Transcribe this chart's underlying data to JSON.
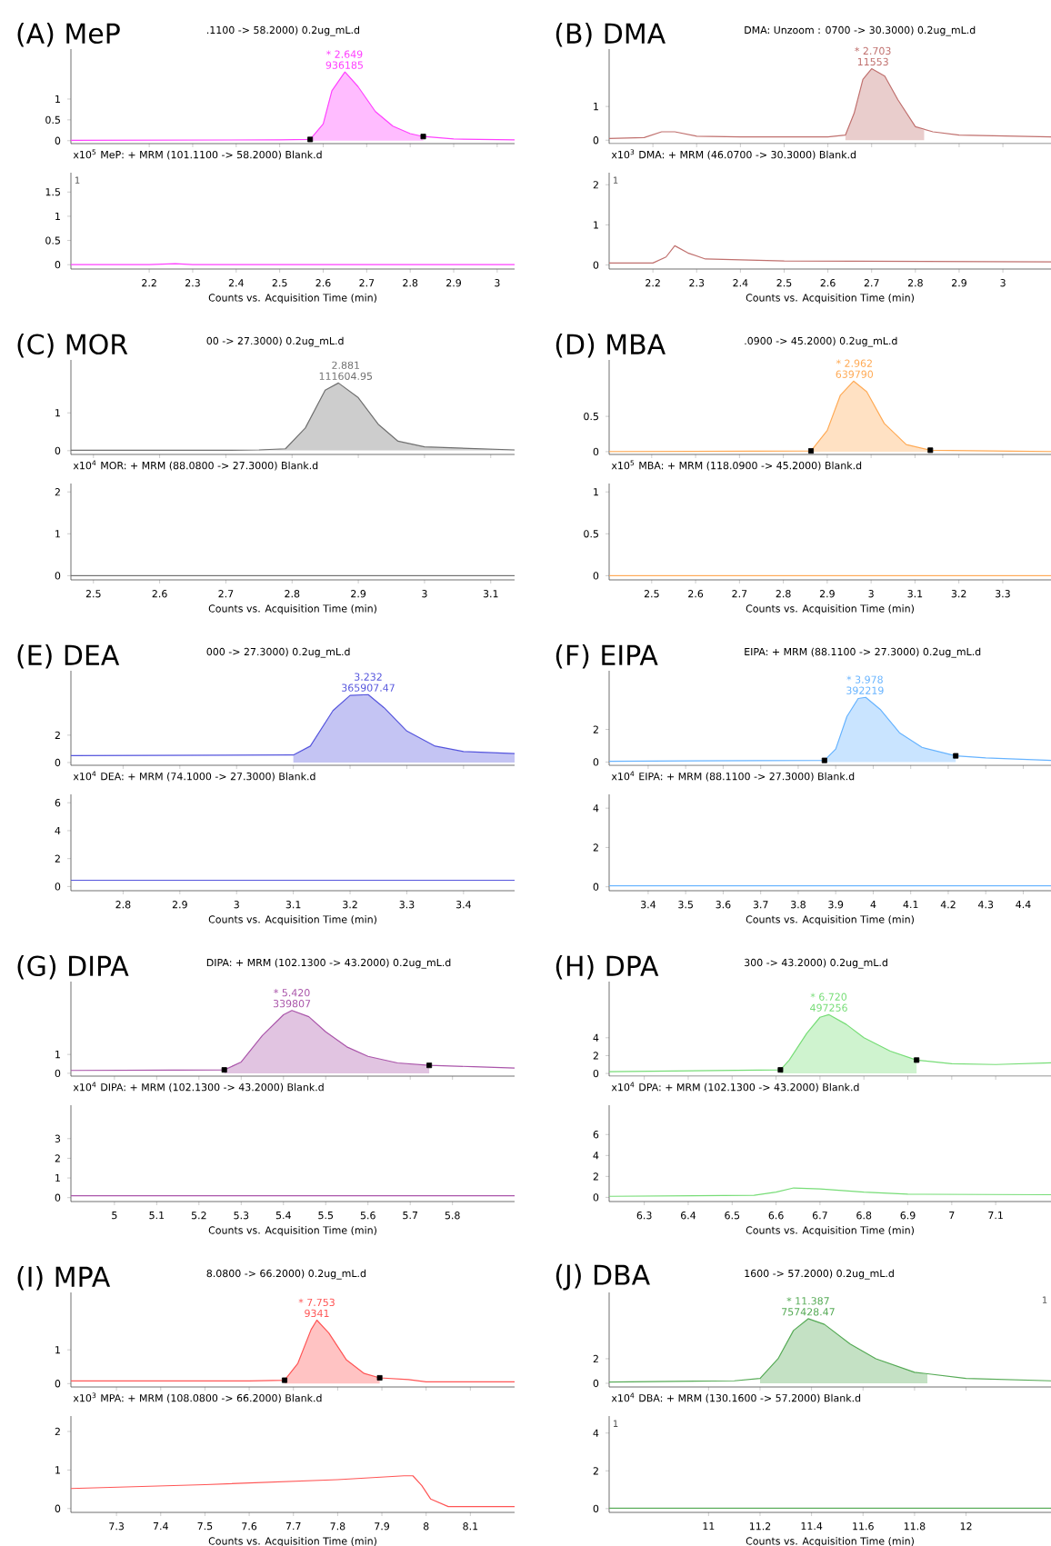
{
  "chart_data": [
    {
      "type": "area",
      "title": "(A) MeP",
      "subtitle": ".1100 -> 58.2000) 0.2ug_mL.d",
      "xlim": [
        2.02,
        3.04
      ],
      "ylim": [
        -0.07,
        2.2
      ],
      "xticks": [
        2.2,
        2.3,
        2.4,
        2.5,
        2.6,
        2.7,
        2.8,
        2.9,
        3
      ],
      "yticks": [
        0,
        0.5,
        1
      ],
      "tick_labels": "y",
      "annotations": [
        {
          "text": "* 2.649",
          "x": 2.649,
          "y": 1.65
        },
        {
          "text": "936185",
          "x": 2.649,
          "y": 1.65
        }
      ],
      "series": [
        {
          "type": "area",
          "color": "#ffbcff",
          "x": [
            2.57,
            2.6,
            2.62,
            2.65,
            2.68,
            2.72,
            2.76,
            2.8,
            2.83
          ],
          "values": [
            0.03,
            0.4,
            1.2,
            1.65,
            1.3,
            0.7,
            0.35,
            0.17,
            0.1
          ]
        },
        {
          "type": "line",
          "color": "#ff40ff",
          "x": [
            2.02,
            2.5,
            2.57,
            2.6,
            2.62,
            2.65,
            2.68,
            2.72,
            2.76,
            2.8,
            2.83,
            2.9,
            3.04
          ],
          "values": [
            0.01,
            0.02,
            0.03,
            0.4,
            1.2,
            1.65,
            1.3,
            0.7,
            0.35,
            0.17,
            0.1,
            0.04,
            0.02
          ]
        },
        {
          "type": "scatter",
          "marker": "square",
          "color": "#000000",
          "x": [
            2.57,
            2.83
          ],
          "values": [
            0.03,
            0.1
          ]
        }
      ]
    },
    {
      "type": "line",
      "title": "x10$^{5}$ MeP: + MRM (101.1100 -> 58.2000) Blank.d",
      "xlabel": "Counts vs. Acquisition Time (min)",
      "xlim": [
        2.02,
        3.04
      ],
      "ylim": [
        -0.09,
        1.9
      ],
      "xticks": [
        2.2,
        2.3,
        2.4,
        2.5,
        2.6,
        2.7,
        2.8,
        2.9,
        3
      ],
      "yticks": [
        0,
        0.5,
        1,
        1.5
      ],
      "annotations": [
        "1"
      ],
      "series": [
        {
          "color": "#ff40ff",
          "x": [
            2.02,
            2.2,
            2.26,
            2.3,
            3.04
          ],
          "values": [
            0,
            0,
            0.02,
            0,
            0
          ]
        }
      ]
    },
    {
      "type": "area",
      "title": "(B) DMA",
      "subtitle": "DMA: Unzoom : 0700 -> 30.3000) 0.2ug_mL.d",
      "xlim": [
        2.1,
        3.11
      ],
      "ylim": [
        -0.1,
        2.7
      ],
      "xticks": [
        2.2,
        2.3,
        2.4,
        2.5,
        2.6,
        2.7,
        2.8,
        2.9,
        3
      ],
      "yticks": [
        0,
        1
      ],
      "tick_labels": "y",
      "annotations": [
        {
          "text": "* 2.703",
          "x": 2.703,
          "y": 2.12
        },
        {
          "text": "11553",
          "x": 2.703,
          "y": 2.12
        }
      ],
      "series": [
        {
          "type": "area",
          "color": "#e9cdcc",
          "x": [
            2.64,
            2.66,
            2.68,
            2.7,
            2.73,
            2.76,
            2.8,
            2.82
          ],
          "values": [
            0.15,
            0.8,
            1.8,
            2.12,
            1.9,
            1.2,
            0.4,
            0.3
          ]
        },
        {
          "type": "line",
          "color": "#c0706e",
          "x": [
            2.1,
            2.18,
            2.22,
            2.25,
            2.3,
            2.4,
            2.6,
            2.64,
            2.66,
            2.68,
            2.7,
            2.73,
            2.76,
            2.8,
            2.84,
            2.9,
            3.11
          ],
          "values": [
            0.05,
            0.08,
            0.25,
            0.25,
            0.12,
            0.1,
            0.1,
            0.15,
            0.8,
            1.8,
            2.12,
            1.9,
            1.2,
            0.4,
            0.25,
            0.15,
            0.1
          ]
        }
      ]
    },
    {
      "type": "line",
      "title": "x10$^{3}$ DMA: + MRM (46.0700 -> 30.3000) Blank.d",
      "xlabel": "Counts vs. Acquisition Time (min)",
      "xlim": [
        2.1,
        3.11
      ],
      "ylim": [
        -0.1,
        2.3
      ],
      "xticks": [
        2.2,
        2.3,
        2.4,
        2.5,
        2.6,
        2.7,
        2.8,
        2.9,
        3
      ],
      "yticks": [
        0,
        1,
        2
      ],
      "annotations": [
        "1"
      ],
      "series": [
        {
          "color": "#c0706e",
          "x": [
            2.1,
            2.2,
            2.23,
            2.25,
            2.28,
            2.32,
            2.5,
            3.11
          ],
          "values": [
            0.05,
            0.05,
            0.2,
            0.48,
            0.3,
            0.15,
            0.1,
            0.08
          ]
        }
      ]
    },
    {
      "type": "area",
      "title": "(C) MOR",
      "subtitle": "00 -> 27.3000) 0.2ug_mL.d",
      "xlim": [
        2.466,
        3.136
      ],
      "ylim": [
        -0.1,
        2.4
      ],
      "xticks": [
        2.5,
        2.6,
        2.7,
        2.8,
        2.9,
        3,
        3.1
      ],
      "yticks": [
        0,
        1
      ],
      "tick_labels": "y",
      "annotations": [
        {
          "text": "2.881",
          "x": 2.881,
          "y": 1.79
        },
        {
          "text": "111604.95",
          "x": 2.881,
          "y": 1.79
        }
      ],
      "series": [
        {
          "type": "area",
          "color": "#cdcdcd",
          "x": [
            2.75,
            2.79,
            2.82,
            2.85,
            2.87,
            2.9,
            2.93,
            2.96,
            3.0,
            3.136
          ],
          "values": [
            0.02,
            0.05,
            0.6,
            1.6,
            1.79,
            1.4,
            0.7,
            0.25,
            0.1,
            0.02
          ]
        },
        {
          "type": "line",
          "color": "#707070",
          "x": [
            2.466,
            2.7,
            2.75,
            2.79,
            2.82,
            2.85,
            2.87,
            2.9,
            2.93,
            2.96,
            3.0,
            3.136
          ],
          "values": [
            0.01,
            0.01,
            0.02,
            0.05,
            0.6,
            1.6,
            1.79,
            1.4,
            0.7,
            0.25,
            0.1,
            0.02
          ]
        }
      ]
    },
    {
      "type": "line",
      "title": "x10$^{4}$ MOR: + MRM (88.0800 -> 27.3000) Blank.d",
      "xlabel": "Counts vs. Acquisition Time (min)",
      "xlim": [
        2.466,
        3.136
      ],
      "ylim": [
        -0.1,
        2.2
      ],
      "xticks": [
        2.5,
        2.6,
        2.7,
        2.8,
        2.9,
        3,
        3.1
      ],
      "yticks": [
        0,
        1,
        2
      ],
      "series": [
        {
          "color": "#707070",
          "x": [
            2.466,
            3.136
          ],
          "values": [
            0,
            0
          ]
        }
      ]
    },
    {
      "type": "area",
      "title": "(D) MBA",
      "subtitle": ".0900 -> 45.2000) 0.2ug_mL.d",
      "xlim": [
        2.403,
        3.41
      ],
      "ylim": [
        -0.04,
        1.3
      ],
      "xticks": [
        2.5,
        2.6,
        2.7,
        2.8,
        2.9,
        3,
        3.1,
        3.2,
        3.3
      ],
      "yticks": [
        0,
        0.5
      ],
      "tick_labels": "y",
      "annotations": [
        {
          "text": "* 2.962",
          "x": 2.962,
          "y": 1.0
        },
        {
          "text": "639790",
          "x": 2.962,
          "y": 1.0
        }
      ],
      "series": [
        {
          "type": "area",
          "color": "#ffe1c3",
          "x": [
            2.863,
            2.9,
            2.93,
            2.96,
            2.99,
            3.03,
            3.08,
            3.135
          ],
          "values": [
            0.01,
            0.3,
            0.8,
            1.0,
            0.85,
            0.4,
            0.1,
            0.02
          ]
        },
        {
          "type": "line",
          "color": "#ffaa55",
          "x": [
            2.403,
            2.863,
            2.9,
            2.93,
            2.96,
            2.99,
            3.03,
            3.08,
            3.135,
            3.41
          ],
          "values": [
            0,
            0.01,
            0.3,
            0.8,
            1.0,
            0.85,
            0.4,
            0.1,
            0.02,
            0
          ]
        },
        {
          "type": "scatter",
          "marker": "square",
          "color": "#000000",
          "x": [
            2.863,
            3.135
          ],
          "values": [
            0.01,
            0.02
          ]
        }
      ]
    },
    {
      "type": "line",
      "title": "x10$^{5}$ MBA: + MRM (118.0900 -> 45.2000) Blank.d",
      "xlabel": "Counts vs. Acquisition Time (min)",
      "xlim": [
        2.403,
        3.41
      ],
      "ylim": [
        -0.05,
        1.1
      ],
      "xticks": [
        2.5,
        2.6,
        2.7,
        2.8,
        2.9,
        3,
        3.1,
        3.2,
        3.3
      ],
      "yticks": [
        0,
        0.5,
        1
      ],
      "series": [
        {
          "color": "#ffaa55",
          "x": [
            2.403,
            3.41
          ],
          "values": [
            0,
            0
          ]
        }
      ]
    },
    {
      "type": "area",
      "title": "(E) DEA",
      "subtitle": "000 -> 27.3000) 0.2ug_mL.d",
      "xlim": [
        2.708,
        3.49
      ],
      "ylim": [
        -0.2,
        6.7
      ],
      "xticks": [
        2.8,
        2.9,
        3,
        3.1,
        3.2,
        3.3,
        3.4
      ],
      "yticks": [
        0,
        2
      ],
      "tick_labels": "y",
      "annotations": [
        {
          "text": "3.232",
          "x": 3.232,
          "y": 4.96
        },
        {
          "text": "365907.47",
          "x": 3.232,
          "y": 4.96
        }
      ],
      "series": [
        {
          "type": "area",
          "color": "#c4c4f3",
          "x": [
            3.1,
            3.13,
            3.17,
            3.2,
            3.232,
            3.26,
            3.3,
            3.35,
            3.4,
            3.49
          ],
          "values": [
            0.55,
            1.2,
            3.8,
            4.9,
            4.96,
            4.0,
            2.3,
            1.2,
            0.8,
            0.65
          ]
        },
        {
          "type": "line",
          "color": "#5555dd",
          "x": [
            2.708,
            3.1,
            3.13,
            3.17,
            3.2,
            3.232,
            3.26,
            3.3,
            3.35,
            3.4,
            3.49
          ],
          "values": [
            0.5,
            0.55,
            1.2,
            3.8,
            4.9,
            4.96,
            4.0,
            2.3,
            1.2,
            0.8,
            0.65
          ]
        }
      ]
    },
    {
      "type": "line",
      "title": "x10$^{4}$ DEA: + MRM (74.1000 -> 27.3000) Blank.d",
      "xlabel": "Counts vs. Acquisition Time (min)",
      "xlim": [
        2.708,
        3.49
      ],
      "ylim": [
        -0.3,
        6.6
      ],
      "xticks": [
        2.8,
        2.9,
        3,
        3.1,
        3.2,
        3.3,
        3.4
      ],
      "yticks": [
        0,
        2,
        4,
        6
      ],
      "series": [
        {
          "color": "#5555dd",
          "x": [
            2.708,
            3.49
          ],
          "values": [
            0.45,
            0.45
          ]
        }
      ]
    },
    {
      "type": "area",
      "title": "(F) EIPA",
      "subtitle": "EIPA: + MRM (88.1100 -> 27.3000) 0.2ug_mL.d",
      "xlim": [
        3.296,
        4.474
      ],
      "ylim": [
        -0.2,
        5.6
      ],
      "xticks": [
        3.4,
        3.5,
        3.6,
        3.7,
        3.8,
        3.9,
        4,
        4.1,
        4.2,
        4.3,
        4.4
      ],
      "yticks": [
        0,
        2
      ],
      "tick_labels": "y",
      "annotations": [
        {
          "text": "* 3.978",
          "x": 3.978,
          "y": 3.97
        },
        {
          "text": "392219",
          "x": 3.978,
          "y": 3.97
        }
      ],
      "series": [
        {
          "type": "area",
          "color": "#c9e4ff",
          "x": [
            3.87,
            3.9,
            3.93,
            3.96,
            3.98,
            4.02,
            4.07,
            4.13,
            4.22
          ],
          "values": [
            0.1,
            0.8,
            2.8,
            3.9,
            3.97,
            3.2,
            1.8,
            0.9,
            0.38
          ]
        },
        {
          "type": "line",
          "color": "#66b3ff",
          "x": [
            3.296,
            3.87,
            3.9,
            3.93,
            3.96,
            3.98,
            4.02,
            4.07,
            4.13,
            4.22,
            4.3,
            4.474
          ],
          "values": [
            0.05,
            0.1,
            0.8,
            2.8,
            3.9,
            3.97,
            3.2,
            1.8,
            0.9,
            0.38,
            0.25,
            0.1
          ]
        },
        {
          "type": "scatter",
          "marker": "square",
          "color": "#000000",
          "x": [
            3.87,
            4.22
          ],
          "values": [
            0.1,
            0.38
          ]
        }
      ]
    },
    {
      "type": "line",
      "title": "x10$^{4}$ EIPA: + MRM (88.1100 -> 27.3000) Blank.d",
      "xlabel": "Counts vs. Acquisition Time (min)",
      "xlim": [
        3.296,
        4.474
      ],
      "ylim": [
        -0.2,
        4.7
      ],
      "xticks": [
        3.4,
        3.5,
        3.6,
        3.7,
        3.8,
        3.9,
        4,
        4.1,
        4.2,
        4.3,
        4.4
      ],
      "yticks": [
        0,
        2,
        4
      ],
      "series": [
        {
          "color": "#66b3ff",
          "x": [
            3.296,
            4.474
          ],
          "values": [
            0.05,
            0.05
          ]
        }
      ]
    },
    {
      "type": "area",
      "title": "(G) DIPA",
      "subtitle": "DIPA: + MRM (102.1300 -> 43.2000) 0.2ug_mL.d",
      "xlim": [
        4.897,
        5.947
      ],
      "ylim": [
        -0.15,
        4.86
      ],
      "xticks": [
        5,
        5.1,
        5.2,
        5.3,
        5.4,
        5.5,
        5.6,
        5.7,
        5.8
      ],
      "yticks": [
        0,
        1
      ],
      "tick_labels": "y",
      "annotations": [
        {
          "text": "* 5.420",
          "x": 5.42,
          "y": 3.33
        },
        {
          "text": "339807",
          "x": 5.42,
          "y": 3.33
        }
      ],
      "series": [
        {
          "type": "area",
          "color": "#e1c4e1",
          "x": [
            5.26,
            5.3,
            5.35,
            5.4,
            5.42,
            5.46,
            5.5,
            5.55,
            5.6,
            5.67,
            5.745
          ],
          "values": [
            0.18,
            0.6,
            2.0,
            3.1,
            3.33,
            3.0,
            2.2,
            1.4,
            0.9,
            0.55,
            0.42
          ]
        },
        {
          "type": "line",
          "color": "#aa55aa",
          "x": [
            4.897,
            5.26,
            5.3,
            5.35,
            5.4,
            5.42,
            5.46,
            5.5,
            5.55,
            5.6,
            5.67,
            5.745,
            5.85,
            5.947
          ],
          "values": [
            0.15,
            0.18,
            0.6,
            2.0,
            3.1,
            3.33,
            3.0,
            2.2,
            1.4,
            0.9,
            0.55,
            0.42,
            0.35,
            0.28
          ]
        },
        {
          "type": "scatter",
          "marker": "square",
          "color": "#000000",
          "x": [
            5.26,
            5.745
          ],
          "values": [
            0.18,
            0.42
          ]
        }
      ]
    },
    {
      "type": "line",
      "title": "x10$^{4}$ DIPA: + MRM (102.1300 -> 43.2000) Blank.d",
      "xlabel": "Counts vs. Acquisition Time (min)",
      "xlim": [
        4.897,
        5.947
      ],
      "ylim": [
        -0.2,
        4.7
      ],
      "xticks": [
        5,
        5.1,
        5.2,
        5.3,
        5.4,
        5.5,
        5.6,
        5.7,
        5.8
      ],
      "yticks": [
        0,
        1,
        2,
        3
      ],
      "series": [
        {
          "color": "#aa55aa",
          "x": [
            4.897,
            5.947
          ],
          "values": [
            0.1,
            0.1
          ]
        }
      ]
    },
    {
      "type": "area",
      "title": "(H) DPA",
      "subtitle": "300 -> 43.2000) 0.2ug_mL.d",
      "xlim": [
        6.22,
        7.226
      ],
      "ylim": [
        -0.3,
        10.3
      ],
      "xticks": [
        6.3,
        6.4,
        6.5,
        6.6,
        6.7,
        6.8,
        6.9,
        7,
        7.1
      ],
      "yticks": [
        0,
        2,
        4
      ],
      "tick_labels": "y",
      "annotations": [
        {
          "text": "* 6.720",
          "x": 6.72,
          "y": 6.6
        },
        {
          "text": "497256",
          "x": 6.72,
          "y": 6.6
        }
      ],
      "series": [
        {
          "type": "area",
          "color": "#cff3cf",
          "x": [
            6.61,
            6.63,
            6.67,
            6.7,
            6.72,
            6.76,
            6.8,
            6.86,
            6.92
          ],
          "values": [
            0.4,
            1.5,
            4.5,
            6.3,
            6.6,
            5.5,
            4.0,
            2.5,
            1.5
          ]
        },
        {
          "type": "line",
          "color": "#77dd77",
          "x": [
            6.22,
            6.61,
            6.63,
            6.67,
            6.7,
            6.72,
            6.76,
            6.8,
            6.86,
            6.92,
            7.0,
            7.1,
            7.226
          ],
          "values": [
            0.2,
            0.4,
            1.5,
            4.5,
            6.3,
            6.6,
            5.5,
            4.0,
            2.5,
            1.5,
            1.1,
            1.0,
            1.2
          ]
        },
        {
          "type": "scatter",
          "marker": "square",
          "color": "#000000",
          "x": [
            6.61,
            6.92
          ],
          "values": [
            0.4,
            1.5
          ]
        }
      ]
    },
    {
      "type": "line",
      "title": "x10$^{4}$ DPA: + MRM (102.1300 -> 43.2000) Blank.d",
      "xlabel": "Counts vs. Acquisition Time (min)",
      "xlim": [
        6.22,
        7.226
      ],
      "ylim": [
        -0.4,
        8.8
      ],
      "xticks": [
        6.3,
        6.4,
        6.5,
        6.6,
        6.7,
        6.8,
        6.9,
        7,
        7.1
      ],
      "yticks": [
        0,
        2,
        4,
        6
      ],
      "series": [
        {
          "color": "#77dd77",
          "x": [
            6.22,
            6.55,
            6.6,
            6.64,
            6.7,
            6.8,
            6.9,
            7.226
          ],
          "values": [
            0.1,
            0.2,
            0.5,
            0.9,
            0.8,
            0.5,
            0.3,
            0.25
          ]
        }
      ]
    },
    {
      "type": "area",
      "title": "(I) MPA",
      "subtitle": "8.0800 -> 66.2000) 0.2ug_mL.d",
      "xlim": [
        7.197,
        8.2
      ],
      "ylim": [
        -0.1,
        2.7
      ],
      "xticks": [
        7.3,
        7.4,
        7.5,
        7.6,
        7.7,
        7.8,
        7.9,
        8,
        8.1
      ],
      "yticks": [
        0,
        1
      ],
      "tick_labels": "y",
      "annotations": [
        {
          "text": "* 7.753",
          "x": 7.753,
          "y": 1.88
        },
        {
          "text": "9341",
          "x": 7.753,
          "y": 1.88
        }
      ],
      "series": [
        {
          "type": "area",
          "color": "#ffc3c3",
          "x": [
            7.68,
            7.71,
            7.74,
            7.753,
            7.78,
            7.82,
            7.86,
            7.895
          ],
          "values": [
            0.1,
            0.6,
            1.6,
            1.88,
            1.5,
            0.7,
            0.3,
            0.17
          ]
        },
        {
          "type": "line",
          "color": "#ff5555",
          "x": [
            7.197,
            7.6,
            7.68,
            7.71,
            7.74,
            7.753,
            7.78,
            7.82,
            7.86,
            7.895,
            7.96,
            8.0,
            8.2
          ],
          "values": [
            0.08,
            0.08,
            0.1,
            0.6,
            1.6,
            1.88,
            1.5,
            0.7,
            0.3,
            0.17,
            0.12,
            0.05,
            0.05
          ]
        },
        {
          "type": "scatter",
          "marker": "square",
          "color": "#000000",
          "x": [
            7.68,
            7.895
          ],
          "values": [
            0.1,
            0.17
          ]
        }
      ]
    },
    {
      "type": "line",
      "title": "x10$^{3}$ MPA: + MRM (108.0800 -> 66.2000) Blank.d",
      "xlabel": "Counts vs. Acquisition Time (min)",
      "xlim": [
        7.197,
        8.2
      ],
      "ylim": [
        -0.1,
        2.4
      ],
      "xticks": [
        7.3,
        7.4,
        7.5,
        7.6,
        7.7,
        7.8,
        7.9,
        8,
        8.1
      ],
      "yticks": [
        0,
        1,
        2
      ],
      "series": [
        {
          "color": "#ff5555",
          "x": [
            7.197,
            7.5,
            7.8,
            7.95,
            7.97,
            7.99,
            8.01,
            8.05,
            8.2
          ],
          "values": [
            0.52,
            0.62,
            0.75,
            0.85,
            0.85,
            0.6,
            0.25,
            0.05,
            0.05
          ]
        }
      ]
    },
    {
      "type": "area",
      "title": "(J) DBA",
      "subtitle": "1600 -> 57.2000) 0.2ug_mL.d",
      "xlim": [
        10.614,
        12.33
      ],
      "ylim": [
        -0.3,
        7.4
      ],
      "xticks": [
        11,
        11.2,
        11.4,
        11.6,
        11.8,
        12
      ],
      "yticks": [
        0,
        2
      ],
      "tick_labels": "y",
      "annotations": [
        "1",
        {
          "text": "* 11.387",
          "x": 11.387,
          "y": 5.26
        },
        {
          "text": "757428.47",
          "x": 11.387,
          "y": 5.26
        }
      ],
      "series": [
        {
          "type": "area",
          "color": "#c4e1c4",
          "x": [
            11.2,
            11.27,
            11.33,
            11.387,
            11.45,
            11.55,
            11.65,
            11.8,
            11.85
          ],
          "values": [
            0.4,
            2.0,
            4.3,
            5.26,
            4.8,
            3.2,
            2.0,
            0.9,
            0.75
          ]
        },
        {
          "type": "line",
          "color": "#55aa55",
          "x": [
            10.614,
            11.1,
            11.2,
            11.27,
            11.33,
            11.387,
            11.45,
            11.55,
            11.65,
            11.8,
            12.0,
            12.33
          ],
          "values": [
            0.1,
            0.2,
            0.4,
            2.0,
            4.3,
            5.26,
            4.8,
            3.2,
            2.0,
            0.9,
            0.4,
            0.2
          ]
        }
      ]
    },
    {
      "type": "line",
      "title": "x10$^{4}$ DBA: + MRM (130.1600 -> 57.2000) Blank.d",
      "xlabel": "Counts vs. Acquisition Time (min)",
      "xlim": [
        10.614,
        12.33
      ],
      "ylim": [
        -0.2,
        4.9
      ],
      "xticks": [
        11,
        11.2,
        11.4,
        11.6,
        11.8,
        12
      ],
      "yticks": [
        0,
        2,
        4
      ],
      "annotations": [
        "1"
      ],
      "series": [
        {
          "color": "#55aa55",
          "x": [
            10.614,
            12.33
          ],
          "values": [
            0.02,
            0.02
          ]
        }
      ]
    }
  ]
}
